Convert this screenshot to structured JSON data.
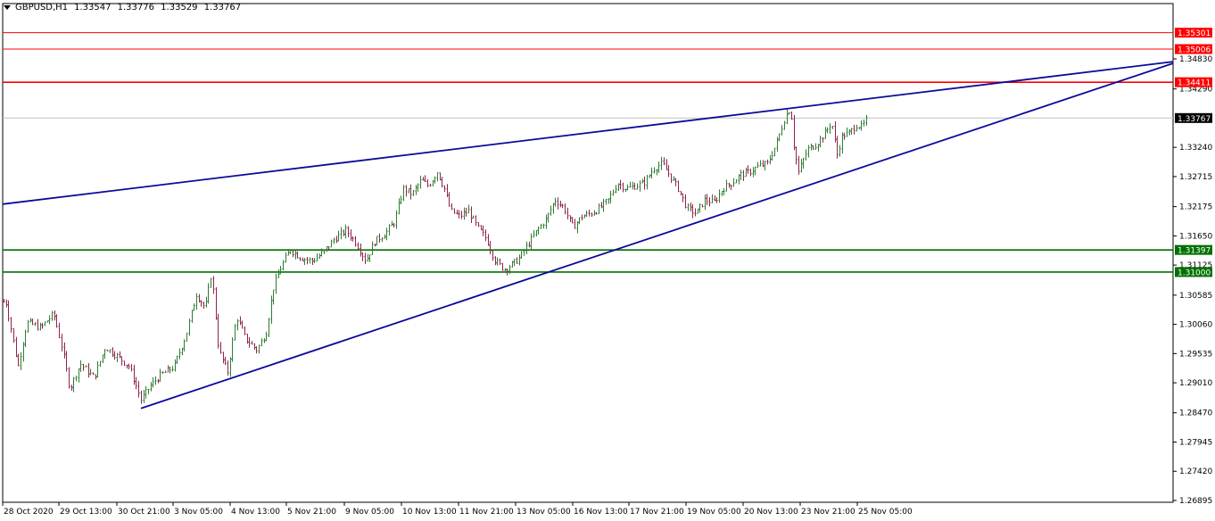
{
  "header": {
    "symbol": "GBPUSD,H1",
    "open": "1.33547",
    "high": "1.33776",
    "low": "1.33529",
    "close": "1.33767"
  },
  "colors": {
    "bull": "#2e7d32",
    "bear": "#8e244d",
    "trendline": "#0a0a99",
    "resistance": "#ff0000",
    "support": "#007000",
    "current_price": "#000000",
    "axis": "#000000"
  },
  "chart_data": {
    "type": "candlestick",
    "symbol": "GBPUSD",
    "timeframe": "H1",
    "ylim": [
      1.268,
      1.353
    ],
    "y_ticks": [
      "1.34830",
      "1.34290",
      "1.33240",
      "1.32715",
      "1.32175",
      "1.31650",
      "1.31125",
      "1.30585",
      "1.30060",
      "1.29535",
      "1.29010",
      "1.28470",
      "1.27945",
      "1.27420",
      "1.26895"
    ],
    "x_ticks": [
      "28 Oct 2020",
      "29 Oct 13:00",
      "30 Oct 21:00",
      "3 Nov 05:00",
      "4 Nov 13:00",
      "5 Nov 21:00",
      "9 Nov 05:00",
      "10 Nov 13:00",
      "11 Nov 21:00",
      "13 Nov 05:00",
      "16 Nov 13:00",
      "17 Nov 21:00",
      "19 Nov 05:00",
      "20 Nov 13:00",
      "23 Nov 21:00",
      "25 Nov 05:00"
    ],
    "horizontal_levels": [
      {
        "label": "1.35301",
        "value": 1.35301,
        "kind": "resistance"
      },
      {
        "label": "1.35006",
        "value": 1.35006,
        "kind": "resistance"
      },
      {
        "label": "1.34411",
        "value": 1.34411,
        "kind": "resistance"
      },
      {
        "label": "1.33767",
        "value": 1.33767,
        "kind": "current"
      },
      {
        "label": "1.31397",
        "value": 1.31397,
        "kind": "support"
      },
      {
        "label": "1.31000",
        "value": 1.31,
        "kind": "support"
      }
    ],
    "trendlines": [
      {
        "from": [
          "28 Oct 2020",
          1.3222
        ],
        "to": [
          "beyond 25 Nov",
          1.3478
        ]
      },
      {
        "from": [
          "30 Oct 21:00",
          1.2855
        ],
        "to": [
          "beyond 25 Nov",
          1.3475
        ]
      }
    ],
    "price_path": [
      [
        0,
        1.304
      ],
      [
        6,
        1.305
      ],
      [
        12,
        1.3
      ],
      [
        20,
        1.293
      ],
      [
        30,
        1.301
      ],
      [
        45,
        1.3
      ],
      [
        60,
        1.3025
      ],
      [
        70,
        1.296
      ],
      [
        78,
        1.289
      ],
      [
        90,
        1.2935
      ],
      [
        105,
        1.291
      ],
      [
        118,
        1.2965
      ],
      [
        130,
        1.295
      ],
      [
        145,
        1.293
      ],
      [
        158,
        1.287
      ],
      [
        168,
        1.2895
      ],
      [
        180,
        1.2915
      ],
      [
        195,
        1.293
      ],
      [
        208,
        1.2985
      ],
      [
        220,
        1.306
      ],
      [
        230,
        1.3035
      ],
      [
        237,
        1.31
      ],
      [
        245,
        1.296
      ],
      [
        255,
        1.292
      ],
      [
        265,
        1.302
      ],
      [
        275,
        1.298
      ],
      [
        288,
        1.296
      ],
      [
        298,
        1.299
      ],
      [
        306,
        1.307
      ],
      [
        315,
        1.311
      ],
      [
        325,
        1.314
      ],
      [
        338,
        1.3125
      ],
      [
        350,
        1.312
      ],
      [
        362,
        1.3135
      ],
      [
        375,
        1.316
      ],
      [
        388,
        1.3175
      ],
      [
        400,
        1.315
      ],
      [
        410,
        1.312
      ],
      [
        420,
        1.3155
      ],
      [
        432,
        1.317
      ],
      [
        442,
        1.319
      ],
      [
        452,
        1.325
      ],
      [
        462,
        1.324
      ],
      [
        472,
        1.3265
      ],
      [
        480,
        1.3255
      ],
      [
        490,
        1.328
      ],
      [
        498,
        1.325
      ],
      [
        505,
        1.321
      ],
      [
        515,
        1.32
      ],
      [
        525,
        1.321
      ],
      [
        535,
        1.318
      ],
      [
        545,
        1.316
      ],
      [
        555,
        1.312
      ],
      [
        565,
        1.3105
      ],
      [
        575,
        1.3115
      ],
      [
        582,
        1.3125
      ],
      [
        592,
        1.315
      ],
      [
        602,
        1.3175
      ],
      [
        612,
        1.3195
      ],
      [
        622,
        1.323
      ],
      [
        632,
        1.3215
      ],
      [
        642,
        1.318
      ],
      [
        652,
        1.32
      ],
      [
        662,
        1.3205
      ],
      [
        672,
        1.3215
      ],
      [
        682,
        1.323
      ],
      [
        692,
        1.326
      ],
      [
        702,
        1.325
      ],
      [
        712,
        1.3255
      ],
      [
        722,
        1.326
      ],
      [
        732,
        1.3285
      ],
      [
        742,
        1.3295
      ],
      [
        750,
        1.3275
      ],
      [
        760,
        1.325
      ],
      [
        770,
        1.3215
      ],
      [
        780,
        1.3205
      ],
      [
        790,
        1.323
      ],
      [
        800,
        1.3225
      ],
      [
        810,
        1.325
      ],
      [
        820,
        1.326
      ],
      [
        830,
        1.3275
      ],
      [
        840,
        1.328
      ],
      [
        850,
        1.329
      ],
      [
        860,
        1.3295
      ],
      [
        870,
        1.333
      ],
      [
        880,
        1.338
      ],
      [
        886,
        1.3395
      ],
      [
        890,
        1.332
      ],
      [
        895,
        1.328
      ],
      [
        905,
        1.332
      ],
      [
        915,
        1.333
      ],
      [
        925,
        1.335
      ],
      [
        932,
        1.337
      ],
      [
        938,
        1.331
      ],
      [
        944,
        1.3345
      ],
      [
        952,
        1.335
      ],
      [
        960,
        1.3365
      ],
      [
        966,
        1.336
      ],
      [
        972,
        1.3376
      ]
    ]
  }
}
